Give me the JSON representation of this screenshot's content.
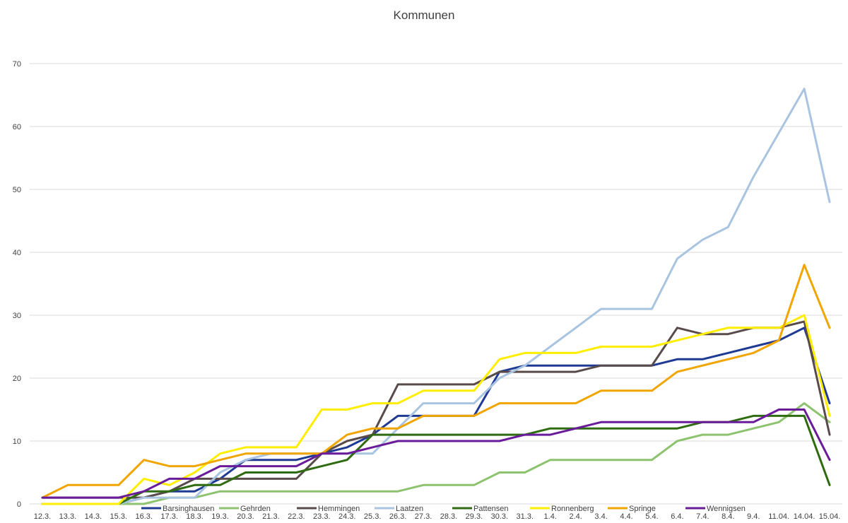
{
  "chart_data": {
    "type": "line",
    "title": "Kommunen",
    "xlabel": "",
    "ylabel": "",
    "ylim": [
      0,
      70
    ],
    "yticks": [
      0,
      10,
      20,
      30,
      40,
      50,
      60,
      70
    ],
    "grid": true,
    "legend_position": "bottom",
    "categories": [
      "12.3.",
      "13.3.",
      "14.3.",
      "15.3.",
      "16.3.",
      "17.3.",
      "18.3.",
      "19.3.",
      "20.3.",
      "21.3.",
      "22.3.",
      "23.3.",
      "24.3.",
      "25.3.",
      "26.3.",
      "27.3.",
      "28.3.",
      "29.3.",
      "30.3.",
      "31.3.",
      "1.4.",
      "2.4.",
      "3.4.",
      "4.4.",
      "5.4.",
      "6.4.",
      "7.4.",
      "8.4.",
      "9.4.",
      "11.04.",
      "14.04.",
      "15.04."
    ],
    "series": [
      {
        "name": "Barsinghausen",
        "color": "#1f3a93",
        "values": [
          0,
          0,
          0,
          0,
          1,
          2,
          2,
          4,
          7,
          7,
          7,
          8,
          9,
          11,
          14,
          14,
          14,
          14,
          21,
          22,
          22,
          22,
          22,
          22,
          22,
          23,
          23,
          24,
          25,
          26,
          28,
          16
        ]
      },
      {
        "name": "Gehrden",
        "color": "#8dc26f",
        "values": [
          0,
          0,
          0,
          0,
          0,
          1,
          1,
          2,
          2,
          2,
          2,
          2,
          2,
          2,
          2,
          3,
          3,
          3,
          5,
          5,
          7,
          7,
          7,
          7,
          7,
          10,
          11,
          11,
          12,
          13,
          16,
          13
        ]
      },
      {
        "name": "Hemmingen",
        "color": "#5a4b4b",
        "values": [
          1,
          1,
          1,
          1,
          1,
          2,
          4,
          4,
          4,
          4,
          4,
          8,
          10,
          11,
          19,
          19,
          19,
          19,
          21,
          21,
          21,
          21,
          22,
          22,
          22,
          28,
          27,
          27,
          28,
          28,
          29,
          11
        ]
      },
      {
        "name": "Laatzen",
        "color": "#a9c4e0",
        "values": [
          0,
          0,
          0,
          0,
          1,
          1,
          1,
          5,
          7,
          8,
          8,
          8,
          8,
          8,
          12,
          16,
          16,
          16,
          20,
          22,
          25,
          28,
          31,
          31,
          31,
          39,
          42,
          44,
          52,
          59,
          66,
          48
        ]
      },
      {
        "name": "Pattensen",
        "color": "#2f6b10",
        "values": [
          0,
          0,
          0,
          0,
          2,
          2,
          3,
          3,
          5,
          5,
          5,
          6,
          7,
          11,
          11,
          11,
          11,
          11,
          11,
          11,
          12,
          12,
          12,
          12,
          12,
          12,
          13,
          13,
          14,
          14,
          14,
          3
        ]
      },
      {
        "name": "Ronnenberg",
        "color": "#ffee00",
        "values": [
          0,
          0,
          0,
          0,
          4,
          3,
          5,
          8,
          9,
          9,
          9,
          15,
          15,
          16,
          16,
          18,
          18,
          18,
          23,
          24,
          24,
          24,
          25,
          25,
          25,
          26,
          27,
          28,
          28,
          28,
          30,
          14
        ]
      },
      {
        "name": "Springe",
        "color": "#f0a500",
        "values": [
          1,
          3,
          3,
          3,
          7,
          6,
          6,
          7,
          8,
          8,
          8,
          8,
          11,
          12,
          12,
          14,
          14,
          14,
          16,
          16,
          16,
          16,
          18,
          18,
          18,
          21,
          22,
          23,
          24,
          26,
          38,
          28
        ]
      },
      {
        "name": "Wennigsen",
        "color": "#6a1b9a",
        "values": [
          1,
          1,
          1,
          1,
          2,
          4,
          4,
          6,
          6,
          6,
          6,
          8,
          8,
          9,
          10,
          10,
          10,
          10,
          10,
          11,
          11,
          12,
          13,
          13,
          13,
          13,
          13,
          13,
          13,
          15,
          15,
          7
        ]
      }
    ]
  }
}
